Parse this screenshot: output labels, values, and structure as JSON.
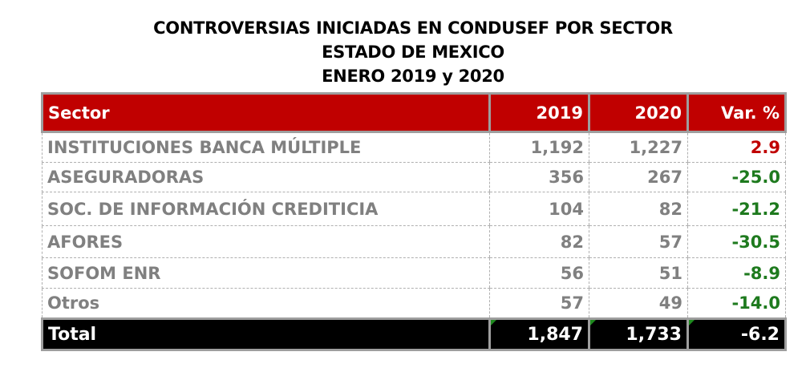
{
  "title": {
    "line1": "CONTROVERSIAS INICIADAS EN CONDUSEF POR SECTOR",
    "line2": "ESTADO DE MEXICO",
    "line3": "ENERO 2019 y 2020"
  },
  "table": {
    "headers": [
      "Sector",
      "2019",
      "2020",
      "Var. %"
    ],
    "rows": [
      {
        "sector": "INSTITUCIONES BANCA MÚLTIPLE",
        "y2019": "1,192",
        "y2020": "1,227",
        "var": "2.9",
        "var_sign": "positive"
      },
      {
        "sector": "ASEGURADORAS",
        "y2019": "356",
        "y2020": "267",
        "var": "-25.0",
        "var_sign": "negative"
      },
      {
        "sector": "SOC. DE INFORMACIÓN CREDITICIA",
        "y2019": "104",
        "y2020": "82",
        "var": "-21.2",
        "var_sign": "negative"
      },
      {
        "sector": "AFORES",
        "y2019": "82",
        "y2020": "57",
        "var": "-30.5",
        "var_sign": "negative"
      },
      {
        "sector": "SOFOM ENR",
        "y2019": "56",
        "y2020": "51",
        "var": "-8.9",
        "var_sign": "negative"
      },
      {
        "sector": "Otros",
        "y2019": "57",
        "y2020": "49",
        "var": "-14.0",
        "var_sign": "negative"
      }
    ],
    "total": {
      "label": "Total",
      "y2019": "1,847",
      "y2020": "1,733",
      "var": "-6.2"
    }
  },
  "colors": {
    "header_bg": "#c00000",
    "total_bg": "#000000",
    "text_gray": "#808080",
    "positive": "#c00000",
    "negative": "#1e7a1e"
  }
}
